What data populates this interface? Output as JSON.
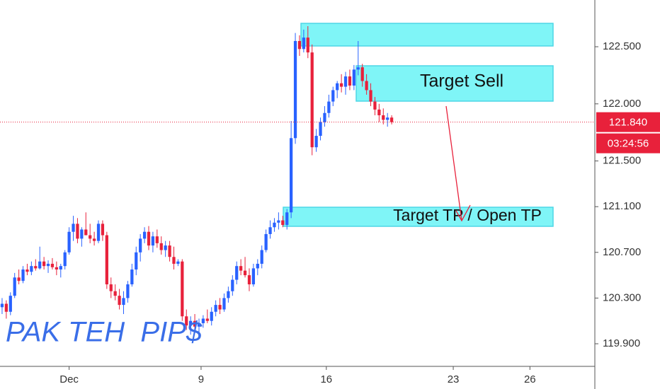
{
  "chart_data": {
    "type": "candlestick",
    "watermark": "PAK TEH  PIP$",
    "annotations": [
      "Target Sell",
      "Target TP / Open TP"
    ],
    "up_color": "#2962ff",
    "down_color": "#e8213b",
    "open": [
      120.22,
      120.25,
      120.18,
      120.32,
      120.48,
      120.45,
      120.55,
      120.53,
      120.58,
      120.56,
      120.62,
      120.58,
      120.6,
      120.57,
      120.55,
      120.58,
      120.7,
      120.88,
      120.95,
      120.82,
      120.9,
      120.85,
      120.82,
      120.8,
      120.95,
      120.85,
      120.42,
      120.36,
      120.32,
      120.24,
      120.3,
      120.42,
      120.55,
      120.7,
      120.82,
      120.88,
      120.76,
      120.84,
      120.78,
      120.72,
      120.76,
      120.66,
      120.6,
      120.62,
      120.14,
      120.06,
      120.1,
      120.05,
      120.08,
      120.12,
      120.1,
      120.18,
      120.24,
      120.2,
      120.3,
      120.36,
      120.46,
      120.58,
      120.54,
      120.5,
      120.42,
      120.56,
      120.6,
      120.72,
      120.86,
      120.92,
      120.96,
      120.98,
      120.94,
      121.05,
      121.7,
      122.55,
      122.48,
      122.58,
      122.45,
      121.62,
      121.72,
      121.84,
      121.92,
      122.02,
      122.12,
      122.18,
      122.15,
      122.24,
      122.16,
      122.3,
      122.32,
      122.2,
      122.12,
      122.02,
      121.95,
      121.9,
      121.86,
      121.88
    ],
    "high": [
      120.3,
      120.28,
      120.35,
      120.52,
      120.55,
      120.58,
      120.6,
      120.62,
      120.64,
      120.75,
      120.66,
      120.63,
      120.65,
      120.62,
      120.6,
      120.72,
      120.92,
      121.02,
      121.0,
      120.92,
      121.05,
      120.95,
      120.88,
      120.98,
      120.98,
      120.88,
      120.48,
      120.42,
      120.38,
      120.36,
      120.45,
      120.6,
      120.75,
      120.86,
      120.92,
      120.93,
      120.88,
      120.9,
      120.84,
      120.8,
      120.8,
      120.75,
      120.64,
      120.64,
      120.2,
      120.14,
      120.16,
      120.12,
      120.15,
      120.2,
      120.22,
      120.28,
      120.3,
      120.34,
      120.4,
      120.5,
      120.62,
      120.64,
      120.66,
      120.56,
      120.6,
      120.64,
      120.76,
      120.9,
      120.98,
      121.0,
      121.05,
      121.02,
      121.08,
      121.85,
      122.62,
      122.6,
      122.65,
      122.68,
      122.52,
      121.78,
      121.88,
      121.98,
      122.08,
      122.15,
      122.2,
      122.26,
      122.28,
      122.3,
      122.34,
      122.55,
      122.35,
      122.26,
      122.18,
      122.06,
      122.0,
      121.96,
      121.92,
      121.9
    ],
    "low": [
      120.16,
      120.12,
      120.15,
      120.3,
      120.42,
      120.43,
      120.5,
      120.5,
      120.54,
      120.55,
      120.55,
      120.52,
      120.55,
      120.5,
      120.48,
      120.55,
      120.68,
      120.8,
      120.78,
      120.75,
      120.85,
      120.78,
      120.76,
      120.78,
      120.8,
      120.38,
      120.3,
      120.28,
      120.2,
      120.16,
      120.26,
      120.4,
      120.5,
      120.62,
      120.78,
      120.72,
      120.7,
      120.74,
      120.68,
      120.66,
      120.62,
      120.55,
      120.58,
      120.1,
      120.02,
      119.98,
      120.02,
      119.97,
      120.04,
      120.08,
      120.06,
      120.14,
      120.16,
      120.18,
      120.26,
      120.32,
      120.42,
      120.5,
      120.48,
      120.36,
      120.4,
      120.5,
      120.56,
      120.7,
      120.82,
      120.88,
      120.9,
      120.92,
      120.9,
      121.0,
      121.65,
      122.42,
      122.45,
      122.4,
      121.55,
      121.58,
      121.68,
      121.8,
      121.88,
      121.98,
      122.05,
      122.1,
      122.08,
      122.12,
      122.12,
      122.25,
      122.15,
      122.08,
      121.98,
      121.9,
      121.84,
      121.82,
      121.8,
      121.82
    ],
    "close": [
      120.25,
      120.18,
      120.32,
      120.48,
      120.45,
      120.55,
      120.53,
      120.58,
      120.56,
      120.62,
      120.58,
      120.6,
      120.57,
      120.55,
      120.58,
      120.7,
      120.88,
      120.95,
      120.82,
      120.9,
      120.85,
      120.82,
      120.8,
      120.95,
      120.85,
      120.42,
      120.36,
      120.32,
      120.24,
      120.3,
      120.42,
      120.55,
      120.7,
      120.82,
      120.88,
      120.76,
      120.84,
      120.78,
      120.72,
      120.76,
      120.66,
      120.6,
      120.62,
      120.14,
      120.06,
      120.1,
      120.05,
      120.08,
      120.12,
      120.1,
      120.18,
      120.24,
      120.2,
      120.3,
      120.36,
      120.46,
      120.58,
      120.54,
      120.5,
      120.42,
      120.56,
      120.6,
      120.72,
      120.86,
      120.92,
      120.96,
      120.98,
      120.94,
      121.05,
      121.7,
      122.55,
      122.48,
      122.58,
      122.45,
      121.62,
      121.72,
      121.84,
      121.92,
      122.02,
      122.12,
      122.18,
      122.15,
      122.24,
      122.16,
      122.3,
      122.32,
      122.2,
      122.12,
      122.02,
      121.95,
      121.9,
      121.86,
      121.88,
      121.84
    ],
    "xlim": [
      -0.5,
      141.5
    ],
    "xticks": [
      {
        "value": 16,
        "label": "Dec"
      },
      {
        "value": 47.5,
        "label": "9"
      },
      {
        "value": 77.4,
        "label": "16"
      },
      {
        "value": 107.7,
        "label": "23"
      },
      {
        "value": 126,
        "label": "26"
      }
    ],
    "ylim": [
      119.702,
      122.909
    ],
    "yticks": [
      {
        "value": 119.9,
        "label": "119.900"
      },
      {
        "value": 120.3,
        "label": "120.300"
      },
      {
        "value": 120.7,
        "label": "120.700"
      },
      {
        "value": 121.1,
        "label": "121.100"
      },
      {
        "value": 121.5,
        "label": "121.500"
      },
      {
        "value": 122.0,
        "label": "122.000"
      },
      {
        "value": 122.5,
        "label": "122.500"
      }
    ],
    "last_price": {
      "value": 121.84,
      "label": "121.840"
    },
    "countdown": "03:24:56"
  }
}
